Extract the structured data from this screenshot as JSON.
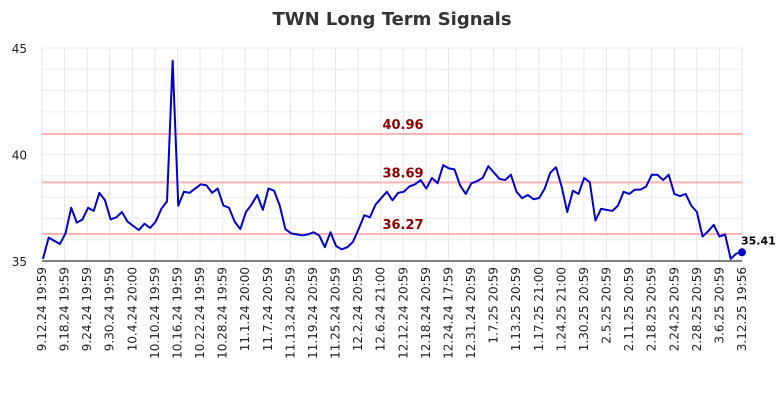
{
  "chart_data": {
    "type": "line",
    "title": "TWN Long Term Signals",
    "xlabel": "",
    "ylabel": "",
    "ylim": [
      35,
      45
    ],
    "y_ticks": [
      35,
      40,
      45
    ],
    "grid": true,
    "line_color": "#0000cc",
    "reference_line_color": "#ffb3b3",
    "reference_label_color": "#8b0000",
    "reference_lines": [
      {
        "value": 40.96,
        "label": "40.96"
      },
      {
        "value": 38.69,
        "label": "38.69"
      },
      {
        "value": 36.27,
        "label": "36.27"
      }
    ],
    "last_point": {
      "value": 35.41,
      "label": "35.41"
    },
    "x_tick_labels": [
      "9.12.24 19:59",
      "9.18.24 19:59",
      "9.24.24 19:59",
      "9.30.24 19:59",
      "10.4.24 20:00",
      "10.10.24 19:59",
      "10.16.24 19:59",
      "10.22.24 19:59",
      "10.28.24 19:59",
      "11.1.24 20:00",
      "11.7.24 20:59",
      "11.13.24 20:59",
      "11.19.24 20:59",
      "11.25.24 20:59",
      "12.2.24 20:59",
      "12.6.24 21:00",
      "12.12.24 20:59",
      "12.18.24 20:59",
      "12.24.24 17:59",
      "12.31.24 20:59",
      "1.7.25 20:59",
      "1.13.25 20:59",
      "1.17.25 21:00",
      "1.24.25 21:00",
      "1.30.25 20:59",
      "2.5.25 20:59",
      "2.11.25 20:59",
      "2.18.25 20:59",
      "2.24.25 20:59",
      "2.28.25 20:59",
      "3.6.25 20:59",
      "3.12.25 19:56"
    ],
    "series": [
      {
        "values": [
          35.1,
          36.1,
          35.95,
          35.8,
          36.3,
          37.5,
          36.8,
          36.95,
          37.5,
          37.35,
          38.2,
          37.85,
          36.95,
          37.05,
          37.3,
          36.85,
          36.65,
          36.45,
          36.75,
          36.55,
          36.85,
          37.45,
          37.8,
          44.4,
          37.6,
          38.25,
          38.2,
          38.4,
          38.6,
          38.55,
          38.2,
          38.4,
          37.6,
          37.5,
          36.85,
          36.5,
          37.3,
          37.65,
          38.1,
          37.4,
          38.4,
          38.3,
          37.6,
          36.5,
          36.3,
          36.25,
          36.2,
          36.25,
          36.35,
          36.2,
          35.65,
          36.35,
          35.7,
          35.55,
          35.65,
          35.9,
          36.5,
          37.15,
          37.05,
          37.65,
          37.95,
          38.25,
          37.85,
          38.2,
          38.25,
          38.5,
          38.6,
          38.8,
          38.4,
          38.9,
          38.65,
          39.5,
          39.35,
          39.3,
          38.55,
          38.15,
          38.65,
          38.75,
          38.9,
          39.45,
          39.15,
          38.85,
          38.8,
          39.05,
          38.25,
          37.95,
          38.1,
          37.9,
          37.95,
          38.4,
          39.15,
          39.4,
          38.5,
          37.3,
          38.3,
          38.15,
          38.9,
          38.7,
          36.9,
          37.45,
          37.4,
          37.35,
          37.6,
          38.25,
          38.15,
          38.35,
          38.35,
          38.5,
          39.05,
          39.05,
          38.8,
          39.05,
          38.15,
          38.05,
          38.15,
          37.6,
          37.3,
          36.15,
          36.4,
          36.7,
          36.15,
          36.25,
          35.1,
          35.35,
          35.41
        ]
      }
    ]
  }
}
